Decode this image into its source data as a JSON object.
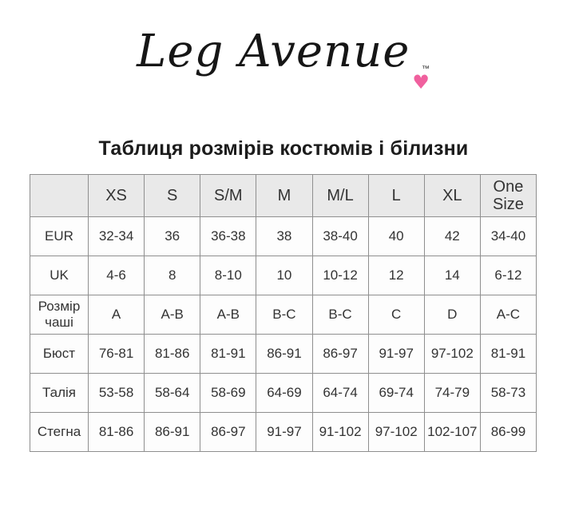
{
  "logo": {
    "text": "Leg Avenue",
    "tm": "™",
    "heart": "♥",
    "heart_color": "#f0609e"
  },
  "title": "Таблиця розмірів костюмів і білизни",
  "size_table": {
    "columns": [
      "",
      "XS",
      "S",
      "S/M",
      "M",
      "M/L",
      "L",
      "XL",
      "One Size"
    ],
    "rows": [
      {
        "label": "EUR",
        "values": [
          "32-34",
          "36",
          "36-38",
          "38",
          "38-40",
          "40",
          "42",
          "34-40"
        ]
      },
      {
        "label": "UK",
        "values": [
          "4-6",
          "8",
          "8-10",
          "10",
          "10-12",
          "12",
          "14",
          "6-12"
        ]
      },
      {
        "label": "Розмір чаші",
        "values": [
          "A",
          "A-B",
          "A-B",
          "B-C",
          "B-C",
          "C",
          "D",
          "A-C"
        ]
      },
      {
        "label": "Бюст",
        "values": [
          "76-81",
          "81-86",
          "81-91",
          "86-91",
          "86-97",
          "91-97",
          "97-102",
          "81-91"
        ]
      },
      {
        "label": "Талія",
        "values": [
          "53-58",
          "58-64",
          "58-69",
          "64-69",
          "64-74",
          "69-74",
          "74-79",
          "58-73"
        ]
      },
      {
        "label": "Стегна",
        "values": [
          "81-86",
          "86-91",
          "86-97",
          "91-97",
          "91-102",
          "97-102",
          "102-107",
          "86-99"
        ]
      }
    ],
    "colors": {
      "header_bg": "#e9e9e9",
      "cell_bg": "#fdfdfd",
      "border": "#8f8f8f",
      "text": "#333333"
    }
  }
}
